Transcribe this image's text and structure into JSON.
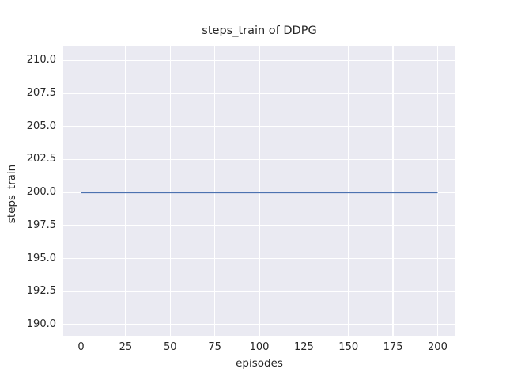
{
  "figure": {
    "title": "steps_train of DDPG",
    "xlabel": "episodes",
    "ylabel": "steps_train"
  },
  "chart_data": {
    "type": "line",
    "title": "steps_train of DDPG",
    "xlabel": "episodes",
    "ylabel": "steps_train",
    "x_tick_labels": [
      "0",
      "25",
      "50",
      "75",
      "100",
      "125",
      "150",
      "175",
      "200"
    ],
    "y_tick_labels": [
      "190.0",
      "192.5",
      "195.0",
      "197.5",
      "200.0",
      "202.5",
      "205.0",
      "207.5",
      "210.0"
    ],
    "xlim": [
      -10,
      210
    ],
    "ylim": [
      189.1,
      211.1
    ],
    "grid": true,
    "legend": "none",
    "series": [
      {
        "name": "steps_train",
        "color": "#4C72B0",
        "line_width": 2,
        "x": [
          0,
          200
        ],
        "y": [
          200,
          200
        ]
      }
    ],
    "style": {
      "figure_background": "#FFFFFF",
      "axes_background": "#EAEAF2",
      "grid_color": "#FFFFFF",
      "text_color": "#262626"
    }
  }
}
